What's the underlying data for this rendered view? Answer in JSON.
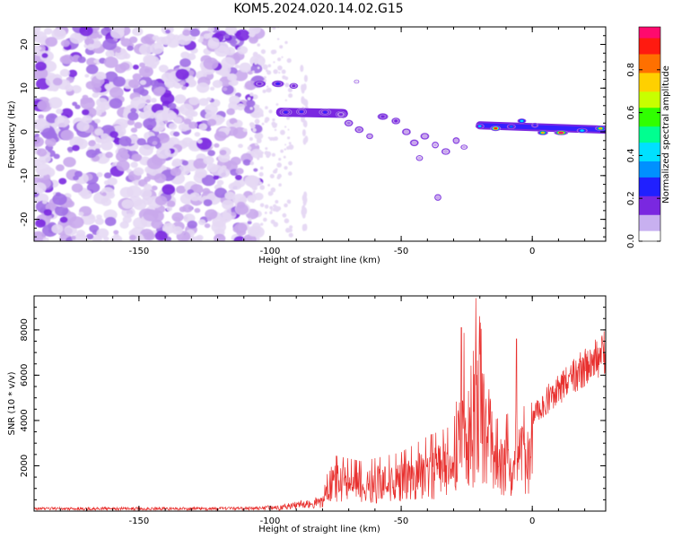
{
  "title": "KOM5.2024.020.14.02.G15",
  "chart_data": [
    {
      "type": "heatmap",
      "xlabel": "Height of straight line (km)",
      "ylabel": "Frequency (Hz)",
      "xlim": [
        -190,
        28
      ],
      "ylim": [
        -25,
        24
      ],
      "x_ticks": [
        "-150",
        "-100",
        "-50",
        "0"
      ],
      "y_ticks": [
        "20",
        "10",
        "0",
        "-10",
        "-20"
      ],
      "colorbar": {
        "label": "Normalized spectral amplitude",
        "ticks": [
          "0.0",
          "0.2",
          "0.4",
          "0.6",
          "0.8"
        ],
        "range": [
          0,
          1
        ]
      },
      "features": [
        {
          "x": -98,
          "y": 11,
          "amplitude": 0.35
        },
        {
          "x": -90,
          "y": 4.5,
          "amplitude": 0.4
        },
        {
          "x": -76,
          "y": 4.5,
          "amplitude": 0.35
        },
        {
          "x": -63,
          "y": 1,
          "amplitude": 0.2
        },
        {
          "x": -55,
          "y": 3,
          "amplitude": 0.3
        },
        {
          "x": -45,
          "y": -2,
          "amplitude": 0.2
        },
        {
          "x": -30,
          "y": -3,
          "amplitude": 0.15
        },
        {
          "x": -36,
          "y": -15,
          "amplitude": 0.15
        },
        {
          "x": -15,
          "y": 1,
          "amplitude": 0.9
        },
        {
          "x": -5,
          "y": 2.5,
          "amplitude": 0.6
        },
        {
          "x": 10,
          "y": -0.2,
          "amplitude": 1.0
        }
      ]
    },
    {
      "type": "line",
      "xlabel": "Height of straight line (km)",
      "ylabel": "SNR (10 * v/v)",
      "xlim": [
        -190,
        28
      ],
      "ylim": [
        0,
        9500
      ],
      "x_ticks": [
        "-150",
        "-100",
        "-50",
        "0"
      ],
      "y_ticks": [
        "2000",
        "4000",
        "6000",
        "8000"
      ],
      "series_color": "#e8302e",
      "envelope": {
        "x": [
          -190,
          -110,
          -95,
          -85,
          -80,
          -77,
          -65,
          -50,
          -40,
          -30,
          -26,
          -23,
          -21,
          -15,
          0,
          15,
          28
        ],
        "y": [
          150,
          150,
          300,
          550,
          700,
          2500,
          2200,
          2600,
          3300,
          3800,
          7900,
          6200,
          9400,
          4000,
          4800,
          6500,
          7800
        ]
      }
    }
  ],
  "colors": {
    "colormap": [
      "#f7f4fb",
      "#e6d9f4",
      "#c9a8ec",
      "#a070e6",
      "#7a28e0",
      "#3520ff",
      "#0066ff",
      "#00d8ff",
      "#00ff70",
      "#c8ff00",
      "#ffb000",
      "#ff2a10",
      "#ff0a6e"
    ]
  }
}
